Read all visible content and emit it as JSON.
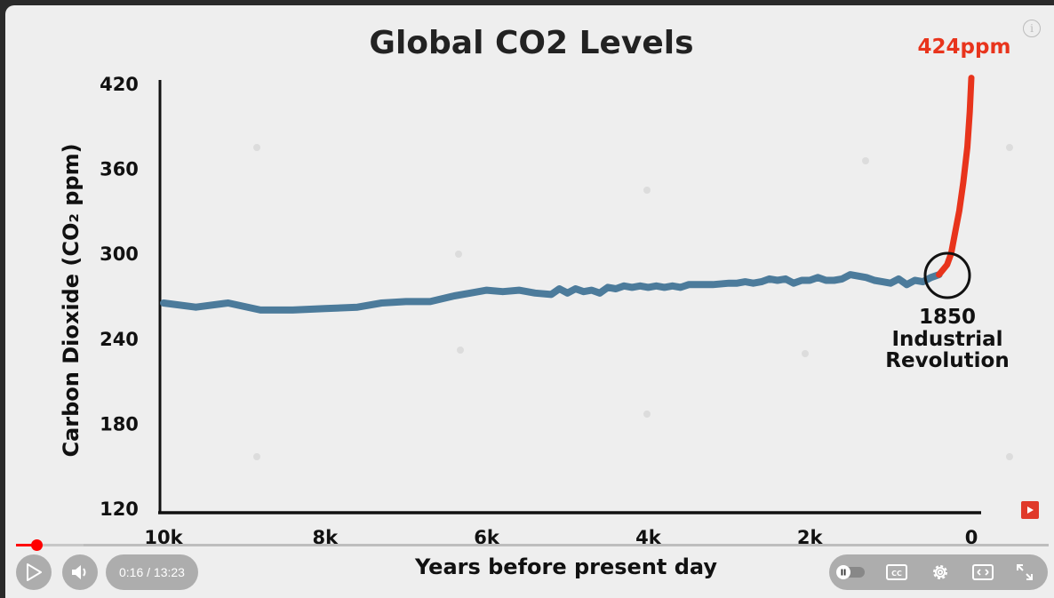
{
  "player": {
    "time_display": "0:16 / 13:23",
    "progress_fraction": 0.0199,
    "buffer_fraction": 0.065,
    "colors": {
      "played": "#ff0000",
      "controls_bg": "#787878"
    },
    "icons": [
      "info-icon",
      "play-icon",
      "volume-icon",
      "autoplay-toggle-icon",
      "captions-icon",
      "settings-icon",
      "theater-mode-icon",
      "fullscreen-icon",
      "channel-watermark-icon"
    ]
  },
  "chart_data": {
    "type": "line",
    "title": "Global CO2 Levels",
    "xlabel": "Years before present day",
    "ylabel": "Carbon Dioxide (CO₂ ppm)",
    "x_tick_labels": [
      "10k",
      "8k",
      "6k",
      "4k",
      "2k",
      "0"
    ],
    "x_ticks": [
      10000,
      8000,
      6000,
      4000,
      2000,
      0
    ],
    "y_tick_labels": [
      "420",
      "360",
      "300",
      "240",
      "180",
      "120"
    ],
    "y_ticks": [
      420,
      360,
      300,
      240,
      180,
      120
    ],
    "xlim": [
      10000,
      0
    ],
    "ylim": [
      120,
      420
    ],
    "grid": false,
    "series": [
      {
        "color": "#4c7b9b",
        "x": [
          10000,
          9600,
          9200,
          8800,
          8400,
          8000,
          7600,
          7300,
          7000,
          6700,
          6400,
          6200,
          6000,
          5800,
          5600,
          5400,
          5200,
          5100,
          5000,
          4900,
          4800,
          4700,
          4600,
          4500,
          4400,
          4300,
          4200,
          4100,
          4000,
          3900,
          3800,
          3700,
          3600,
          3500,
          3400,
          3200,
          3000,
          2900,
          2800,
          2700,
          2600,
          2500,
          2400,
          2300,
          2200,
          2100,
          2000,
          1900,
          1800,
          1700,
          1600,
          1500,
          1400,
          1300,
          1200,
          1100,
          1000,
          900,
          800,
          700,
          600,
          500,
          400
        ],
        "y": [
          265,
          262,
          265,
          260,
          260,
          261,
          262,
          265,
          266,
          266,
          270,
          272,
          274,
          273,
          274,
          272,
          271,
          275,
          272,
          275,
          273,
          274,
          272,
          276,
          275,
          277,
          276,
          277,
          276,
          277,
          276,
          277,
          276,
          278,
          278,
          278,
          279,
          279,
          280,
          279,
          280,
          282,
          281,
          282,
          279,
          281,
          281,
          283,
          281,
          281,
          282,
          285,
          284,
          283,
          281,
          280,
          279,
          282,
          278,
          281,
          280,
          283,
          285
        ]
      },
      {
        "color": "#e8341c",
        "x": [
          400,
          300,
          250,
          200,
          150,
          100,
          50,
          20,
          0
        ],
        "y": [
          285,
          292,
          300,
          315,
          330,
          350,
          375,
          400,
          424
        ]
      }
    ],
    "annotations": {
      "peak_label": "424ppm",
      "event_year": "1850",
      "event_line1": "Industrial",
      "event_line2": "Revolution"
    }
  }
}
